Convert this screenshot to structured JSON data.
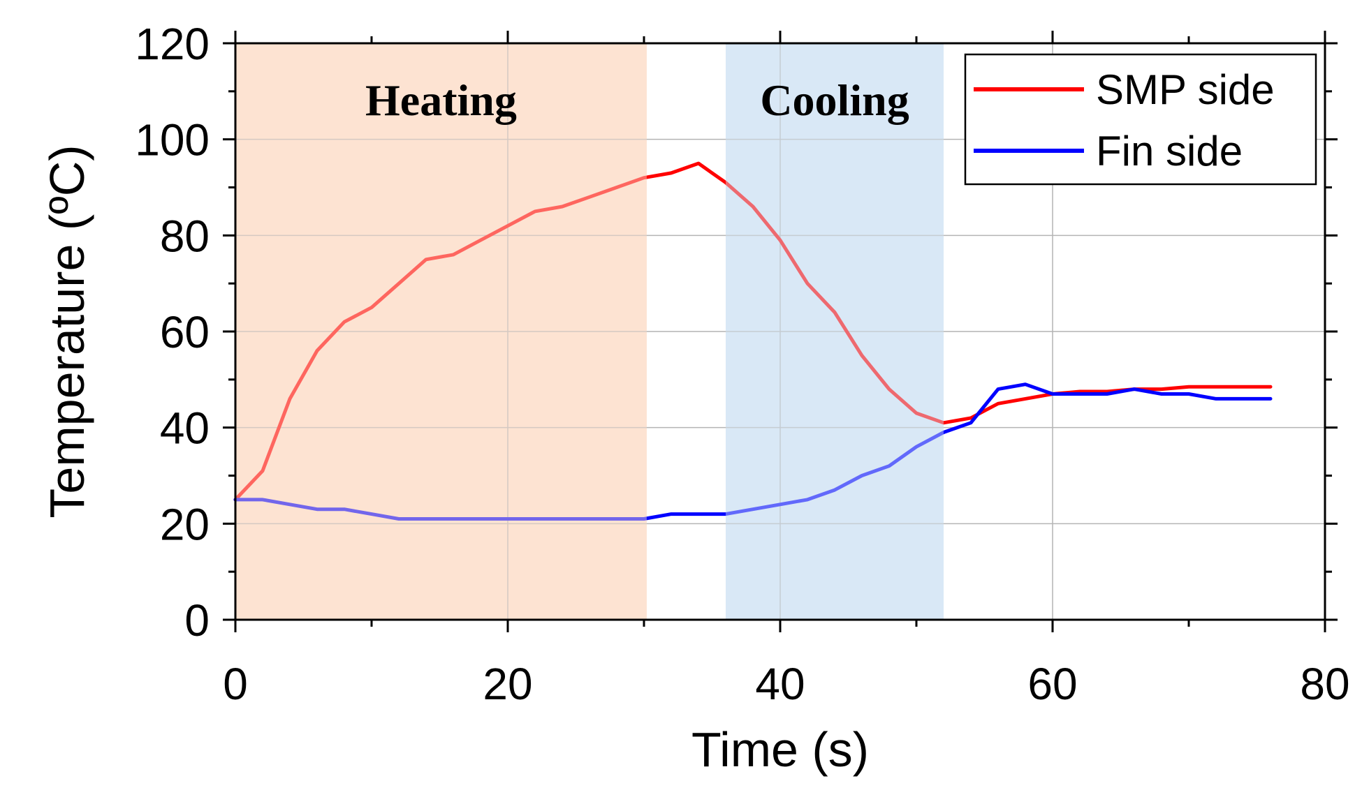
{
  "chart_data": {
    "type": "line",
    "title": "",
    "xlabel": "Time (s)",
    "ylabel": "Temperature (ºC)",
    "xlim": [
      0,
      80
    ],
    "ylim": [
      0,
      120
    ],
    "xticks": [
      0,
      20,
      40,
      60,
      80
    ],
    "yticks": [
      0,
      20,
      40,
      60,
      80,
      100,
      120
    ],
    "grid": true,
    "legend_position": "top-right",
    "regions": [
      {
        "label": "Heating",
        "x0": 0,
        "x1": 30.2,
        "color": "#fde3d2"
      },
      {
        "label": "Cooling",
        "x0": 36,
        "x1": 52,
        "color": "#d9e8f6"
      }
    ],
    "series": [
      {
        "name": "SMP side",
        "color": "#ff0000",
        "x": [
          0,
          2,
          4,
          6,
          8,
          10,
          12,
          14,
          16,
          18,
          20,
          22,
          24,
          26,
          28,
          30,
          32,
          34,
          36,
          38,
          40,
          42,
          44,
          46,
          48,
          50,
          52,
          54,
          56,
          58,
          60,
          62,
          64,
          66,
          68,
          70,
          72,
          74,
          76
        ],
        "values": [
          25,
          31,
          46,
          56,
          62,
          65,
          70,
          75,
          76,
          79,
          82,
          85,
          86,
          88,
          90,
          92,
          93,
          95,
          91,
          86,
          79,
          70,
          64,
          55,
          48,
          43,
          41,
          42,
          45,
          46,
          47,
          47.5,
          47.5,
          48,
          48,
          48.5,
          48.5,
          48.5,
          48.5
        ]
      },
      {
        "name": "Fin side",
        "color": "#0000ff",
        "x": [
          0,
          2,
          4,
          6,
          8,
          10,
          12,
          14,
          16,
          18,
          20,
          22,
          24,
          26,
          28,
          30,
          32,
          34,
          36,
          38,
          40,
          42,
          44,
          46,
          48,
          50,
          52,
          54,
          56,
          58,
          60,
          62,
          64,
          66,
          68,
          70,
          72,
          74,
          76
        ],
        "values": [
          25,
          25,
          24,
          23,
          23,
          22,
          21,
          21,
          21,
          21,
          21,
          21,
          21,
          21,
          21,
          21,
          22,
          22,
          22,
          23,
          24,
          25,
          27,
          30,
          32,
          36,
          39,
          41,
          48,
          49,
          47,
          47,
          47,
          48,
          47,
          47,
          46,
          46,
          46
        ]
      }
    ]
  }
}
